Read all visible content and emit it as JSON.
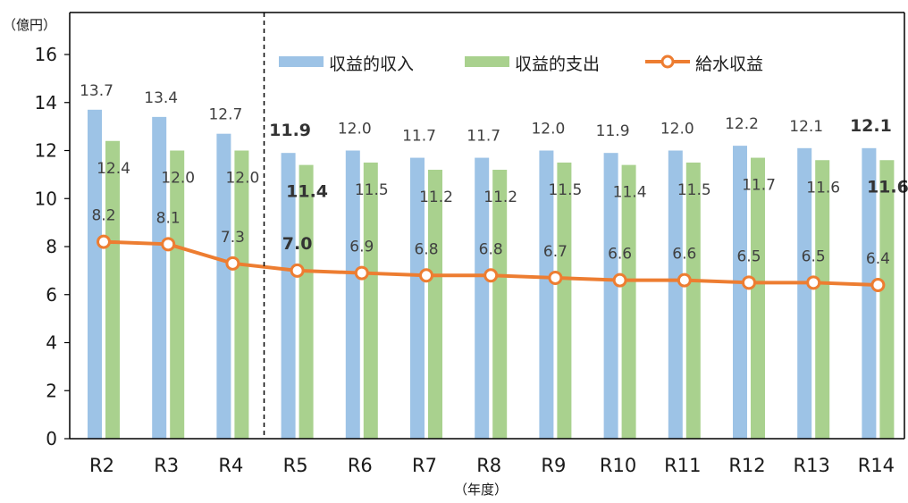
{
  "chart_data": {
    "type": "bar",
    "unit_label": "（億円）",
    "xlabel": "（年度）",
    "ylabel": "",
    "ylim": [
      0,
      16
    ],
    "yticks": [
      0,
      2,
      4,
      6,
      8,
      10,
      12,
      14,
      16
    ],
    "categories": [
      "R2",
      "R3",
      "R4",
      "R5",
      "R6",
      "R7",
      "R8",
      "R9",
      "R10",
      "R11",
      "R12",
      "R13",
      "R14"
    ],
    "divider_after_category": "R4",
    "legend_position": "top-right",
    "series": [
      {
        "name": "収益的収入",
        "type": "bar",
        "color": "#9dc3e6",
        "values": [
          13.7,
          13.4,
          12.7,
          11.9,
          12.0,
          11.7,
          11.7,
          12.0,
          11.9,
          12.0,
          12.2,
          12.1,
          12.1
        ],
        "labels": [
          "13.7",
          "13.4",
          "12.7",
          "11.9",
          "12.0",
          "11.7",
          "11.7",
          "12.0",
          "11.9",
          "12.0",
          "12.2",
          "12.1",
          "12.1"
        ]
      },
      {
        "name": "収益的支出",
        "type": "bar",
        "color": "#a9d18e",
        "values": [
          12.4,
          12.0,
          12.0,
          11.4,
          11.5,
          11.2,
          11.2,
          11.5,
          11.4,
          11.5,
          11.7,
          11.6,
          11.6
        ],
        "labels": [
          "12.4",
          "12.0",
          "12.0",
          "11.4",
          "11.5",
          "11.2",
          "11.2",
          "11.5",
          "11.4",
          "11.5",
          "11.7",
          "11.6",
          "11.6"
        ]
      },
      {
        "name": "給水収益",
        "type": "line",
        "color": "#ed7d31",
        "values": [
          8.2,
          8.1,
          7.3,
          7.0,
          6.9,
          6.8,
          6.8,
          6.7,
          6.6,
          6.6,
          6.5,
          6.5,
          6.4
        ],
        "labels": [
          "8.2",
          "8.1",
          "7.3",
          "7.0",
          "6.9",
          "6.8",
          "6.8",
          "6.7",
          "6.6",
          "6.6",
          "6.5",
          "6.5",
          "6.4"
        ]
      }
    ],
    "emphasized_labels": {
      "収益的収入": [
        "R5",
        "R14"
      ],
      "収益的支出": [
        "R5",
        "R14"
      ],
      "給水収益": [
        "R5"
      ]
    }
  }
}
